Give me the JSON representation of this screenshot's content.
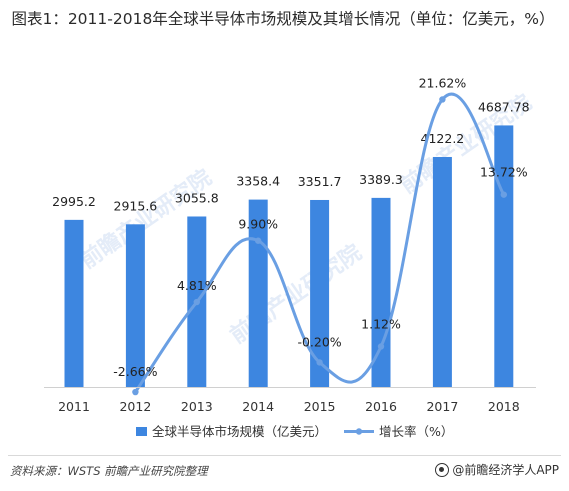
{
  "title": "图表1：2011-2018年全球半导体市场规模及其增长情况（单位：亿美元，%）",
  "source_text": "资料来源：WSTS 前瞻产业研究院整理",
  "brand_text": "@前瞻经济学人APP",
  "watermark_text": "前瞻产业研究院",
  "colors": {
    "bar": "#3d86e0",
    "line": "#6a9fe3",
    "text": "#333333",
    "axis": "#d0d0d0"
  },
  "chart_data": {
    "type": "bar",
    "categories": [
      "2011",
      "2012",
      "2013",
      "2014",
      "2015",
      "2016",
      "2017",
      "2018"
    ],
    "series": [
      {
        "name": "全球半导体市场规模（亿美元）",
        "type": "bar",
        "values": [
          2995.2,
          2915.6,
          3055.8,
          3358.4,
          3351.7,
          3389.3,
          4122.2,
          4687.78
        ],
        "labels": [
          "2995.2",
          "2915.6",
          "3055.8",
          "3358.4",
          "3351.7",
          "3389.3",
          "4122.2",
          "4687.78"
        ]
      },
      {
        "name": "增长率（%）",
        "type": "line",
        "values": [
          null,
          -2.66,
          4.81,
          9.9,
          -0.2,
          1.12,
          21.62,
          13.72
        ],
        "labels": [
          "",
          "-2.66%",
          "4.81%",
          "9.90%",
          "-0.20%",
          "1.12%",
          "21.62%",
          "13.72%"
        ]
      }
    ],
    "legend_position": "bottom",
    "grid": false
  }
}
